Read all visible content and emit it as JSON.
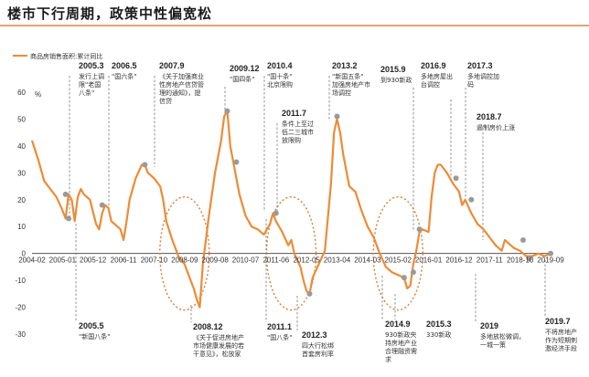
{
  "title": "楼市下行周期，政策中性偏宽松",
  "chart_data": {
    "type": "line",
    "legend": "商品房销售面积:累计同比",
    "unit_label": "%",
    "ylim": [
      -30,
      60
    ],
    "yticks": [
      -30,
      -20,
      -10,
      0,
      10,
      20,
      30,
      40,
      50,
      60
    ],
    "xticks": [
      "2004-02",
      "2005-01",
      "2005-12",
      "2006-11",
      "2007-10",
      "2008-09",
      "2009-08",
      "2010-07",
      "2011-06",
      "2012-05",
      "2013-04",
      "2014-03",
      "2015-02",
      "2016-01",
      "2016-12",
      "2017-11",
      "2018-10",
      "2019-09"
    ],
    "series": [
      {
        "name": "商品房销售面积:累计同比",
        "color": "#ed8b36",
        "points": [
          [
            0,
            42
          ],
          [
            2,
            35
          ],
          [
            4,
            27
          ],
          [
            6,
            24
          ],
          [
            8,
            21
          ],
          [
            10,
            16
          ],
          [
            11,
            13
          ],
          [
            12,
            22
          ],
          [
            13,
            20
          ],
          [
            14,
            12
          ],
          [
            15,
            21
          ],
          [
            16,
            24
          ],
          [
            17,
            22
          ],
          [
            19,
            20
          ],
          [
            21,
            11
          ],
          [
            22,
            9
          ],
          [
            23,
            15
          ],
          [
            24,
            18
          ],
          [
            25,
            17
          ],
          [
            26,
            12
          ],
          [
            28,
            10
          ],
          [
            29,
            9
          ],
          [
            30,
            5
          ],
          [
            31,
            12
          ],
          [
            32,
            20
          ],
          [
            34,
            28
          ],
          [
            36,
            33
          ],
          [
            37,
            33
          ],
          [
            38,
            30
          ],
          [
            40,
            28
          ],
          [
            42,
            25
          ],
          [
            43,
            20
          ],
          [
            44,
            12
          ],
          [
            46,
            5
          ],
          [
            48,
            -1
          ],
          [
            50,
            -4
          ],
          [
            52,
            -10
          ],
          [
            53,
            -13
          ],
          [
            54,
            -17
          ],
          [
            55,
            -20
          ],
          [
            56,
            -4
          ],
          [
            58,
            14
          ],
          [
            60,
            30
          ],
          [
            62,
            42
          ],
          [
            63,
            51
          ],
          [
            64,
            53
          ],
          [
            65,
            40
          ],
          [
            66,
            34
          ],
          [
            68,
            22
          ],
          [
            70,
            14
          ],
          [
            72,
            10
          ],
          [
            74,
            9
          ],
          [
            76,
            7
          ],
          [
            78,
            11
          ],
          [
            79,
            15
          ],
          [
            80,
            12
          ],
          [
            82,
            8
          ],
          [
            84,
            3
          ],
          [
            85,
            5
          ],
          [
            86,
            0
          ],
          [
            88,
            -5
          ],
          [
            89,
            -10
          ],
          [
            90,
            -14
          ],
          [
            91,
            -15
          ],
          [
            92,
            -9
          ],
          [
            94,
            -4
          ],
          [
            96,
            1
          ],
          [
            98,
            26
          ],
          [
            99,
            45
          ],
          [
            100,
            50
          ],
          [
            101,
            45
          ],
          [
            102,
            37
          ],
          [
            104,
            25
          ],
          [
            106,
            23
          ],
          [
            108,
            16
          ],
          [
            110,
            10
          ],
          [
            112,
            6
          ],
          [
            114,
            0
          ],
          [
            116,
            -5
          ],
          [
            118,
            -7
          ],
          [
            120,
            -8
          ],
          [
            122,
            -9
          ],
          [
            123,
            -13
          ],
          [
            124,
            -12
          ],
          [
            125,
            -4
          ],
          [
            126,
            1
          ],
          [
            127,
            8
          ],
          [
            128,
            9
          ],
          [
            130,
            8
          ],
          [
            131,
            21
          ],
          [
            132,
            30
          ],
          [
            133,
            33
          ],
          [
            134,
            33
          ],
          [
            136,
            30
          ],
          [
            138,
            26
          ],
          [
            140,
            23
          ],
          [
            141,
            18
          ],
          [
            142,
            20
          ],
          [
            144,
            15
          ],
          [
            146,
            11
          ],
          [
            148,
            9
          ],
          [
            150,
            6
          ],
          [
            152,
            3
          ],
          [
            154,
            1
          ],
          [
            155,
            5
          ],
          [
            156,
            4
          ],
          [
            158,
            2
          ],
          [
            160,
            1
          ],
          [
            162,
            -1
          ],
          [
            164,
            -1
          ],
          [
            166,
            0
          ],
          [
            168,
            -1
          ],
          [
            170,
            0
          ]
        ]
      }
    ],
    "markers": [
      [
        11,
        22
      ],
      [
        12,
        13
      ],
      [
        23,
        18
      ],
      [
        37,
        33
      ],
      [
        64,
        53
      ],
      [
        67,
        34
      ],
      [
        80,
        15
      ],
      [
        91,
        -15
      ],
      [
        100,
        51
      ],
      [
        122,
        -9
      ],
      [
        125,
        -7
      ],
      [
        127,
        9
      ],
      [
        139,
        28
      ],
      [
        144,
        20
      ],
      [
        161,
        5
      ],
      [
        163,
        -2
      ],
      [
        170,
        0
      ]
    ],
    "circles": [
      {
        "cx": 50,
        "cy": 0
      },
      {
        "cx": 85,
        "cy": 0
      },
      {
        "cx": 120,
        "cy": 0
      }
    ]
  },
  "annotations": [
    {
      "date": "2005.3",
      "lines": [
        "发行上调",
        "限\"老国",
        "八条\""
      ]
    },
    {
      "date": "2006.5",
      "lines": [
        "\"国六条\""
      ]
    },
    {
      "date": "2007.9",
      "lines": [
        "《关于加强商业",
        "性房地产信贷管",
        "理的通知》，提",
        "信贷"
      ]
    },
    {
      "date": "2009.12",
      "lines": [
        "\"国四条\""
      ]
    },
    {
      "date": "2010.4",
      "lines": [
        "\"国十条\"",
        "北京限购"
      ]
    },
    {
      "date": "2011.7",
      "lines": [
        "条件上至过",
        "低二三城市",
        "放限购"
      ]
    },
    {
      "date": "2013.2",
      "lines": [
        "\"新国五条\"",
        "加强房地产市",
        "场调控"
      ]
    },
    {
      "date": "2015.9",
      "lines": [
        "到930新政"
      ]
    },
    {
      "date": "2016.9",
      "lines": [
        "多地房屋出",
        "台调控"
      ]
    },
    {
      "date": "2017.3",
      "lines": [
        "多地调控加",
        "码"
      ]
    },
    {
      "date": "2018.7",
      "lines": [
        "遏制房价上涨"
      ]
    },
    {
      "date": "2005.5",
      "lines": [
        "\"新国八条\""
      ]
    },
    {
      "date": "2008.12",
      "lines": [
        "《关于促进房地产",
        "市场健康发展的若",
        "干意见》，松放家"
      ]
    },
    {
      "date": "2011.1",
      "lines": [
        "\"国八条\""
      ]
    },
    {
      "date": "2012.3",
      "lines": [
        "四大行松绑",
        "首套房利率"
      ]
    },
    {
      "date": "2014.9",
      "lines": [
        "930新政央",
        "持房地产业",
        "合理融资需",
        "求"
      ]
    },
    {
      "date": "2015.3",
      "lines": [
        "330新政"
      ]
    },
    {
      "date": "2019",
      "lines": [
        "多地放松微调，",
        "一城一策"
      ]
    },
    {
      "date": "2019.7",
      "lines": [
        "不将房地产",
        "作为短期刺",
        "激经济手段"
      ]
    }
  ]
}
